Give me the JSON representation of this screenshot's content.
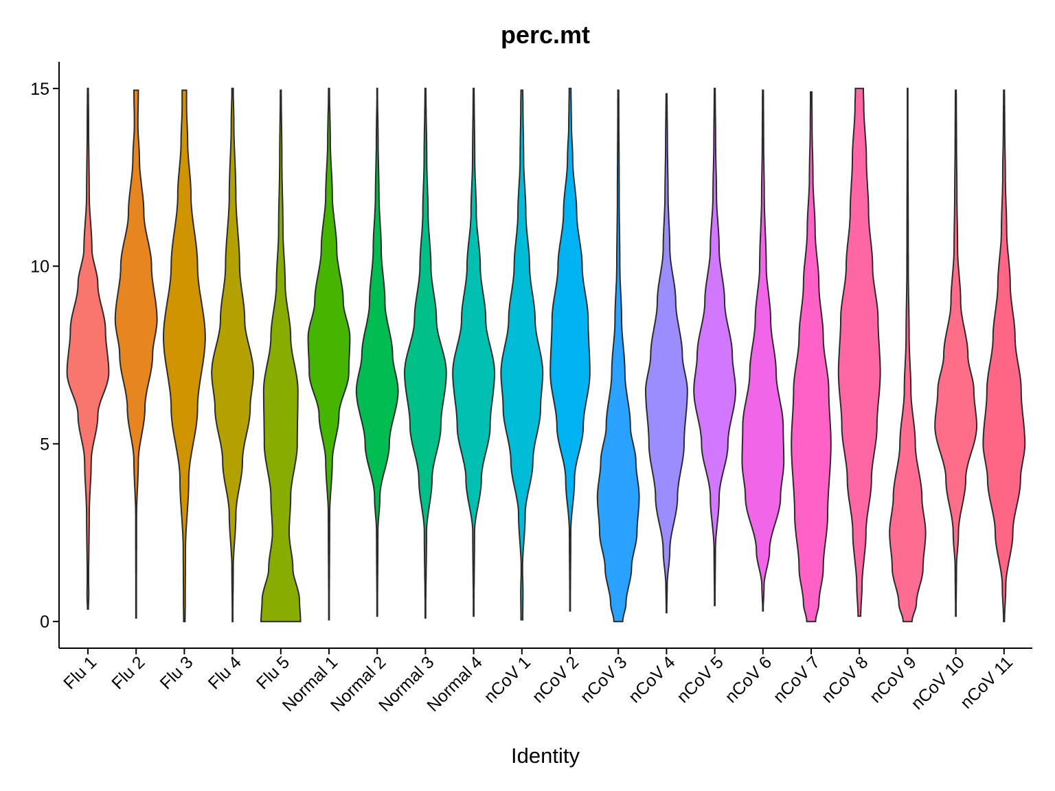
{
  "chart_data": {
    "type": "violin",
    "title": "perc.mt",
    "xlabel": "Identity",
    "ylabel": "",
    "ylim": [
      -0.75,
      15.75
    ],
    "yticks": [
      0,
      5,
      10,
      15
    ],
    "ytick_labels": [
      "0",
      "5",
      "10",
      "15"
    ],
    "legend": "none",
    "grid": false,
    "categories": [
      "Flu 1",
      "Flu 2",
      "Flu 3",
      "Flu 4",
      "Flu 5",
      "Normal 1",
      "Normal 2",
      "Normal 3",
      "Normal 4",
      "nCoV 1",
      "nCoV 2",
      "nCoV 3",
      "nCoV 4",
      "nCoV 5",
      "nCoV 6",
      "nCoV 7",
      "nCoV 8",
      "nCoV 9",
      "nCoV 10",
      "nCoV 11"
    ],
    "colors": [
      "#F8766D",
      "#E7851E",
      "#D09400",
      "#B2A100",
      "#89AC00",
      "#45B500",
      "#00BC51",
      "#00C087",
      "#00C0B2",
      "#00BCD6",
      "#00B3F2",
      "#29A3FF",
      "#9C8DFF",
      "#D277FF",
      "#F166E8",
      "#FF61C7",
      "#FF67A4",
      "#FF6C91",
      "#FF6E88",
      "#FF6585"
    ],
    "series": [
      {
        "name": "Flu 1",
        "min": 0.35,
        "max": 15.0,
        "profile": [
          [
            0.35,
            0.02
          ],
          [
            0.8,
            0.04
          ],
          [
            1.2,
            0.03
          ],
          [
            3,
            0.06
          ],
          [
            4.5,
            0.15
          ],
          [
            5.8,
            0.45
          ],
          [
            7,
            0.95
          ],
          [
            8.2,
            0.8
          ],
          [
            9.5,
            0.45
          ],
          [
            10.5,
            0.18
          ],
          [
            12,
            0.06
          ],
          [
            14,
            0.03
          ],
          [
            15,
            0.02
          ]
        ]
      },
      {
        "name": "Flu 2",
        "min": 0.1,
        "max": 14.95,
        "profile": [
          [
            0.1,
            0.01
          ],
          [
            3,
            0.02
          ],
          [
            4.5,
            0.1
          ],
          [
            6,
            0.4
          ],
          [
            7.5,
            0.75
          ],
          [
            8.5,
            0.95
          ],
          [
            10,
            0.7
          ],
          [
            11.5,
            0.35
          ],
          [
            13,
            0.15
          ],
          [
            14,
            0.08
          ],
          [
            14.95,
            0.1
          ]
        ]
      },
      {
        "name": "Flu 3",
        "min": 0.0,
        "max": 14.95,
        "profile": [
          [
            0,
            0.03
          ],
          [
            0.5,
            0.04
          ],
          [
            2,
            0.05
          ],
          [
            4,
            0.2
          ],
          [
            6,
            0.6
          ],
          [
            8,
            0.95
          ],
          [
            10,
            0.6
          ],
          [
            12,
            0.3
          ],
          [
            13.5,
            0.15
          ],
          [
            14.5,
            0.1
          ],
          [
            14.95,
            0.1
          ]
        ]
      },
      {
        "name": "Flu 4",
        "min": 0.0,
        "max": 15.0,
        "profile": [
          [
            0,
            0.01
          ],
          [
            1.5,
            0.03
          ],
          [
            3,
            0.15
          ],
          [
            4.5,
            0.45
          ],
          [
            6,
            0.8
          ],
          [
            7,
            0.95
          ],
          [
            8.5,
            0.55
          ],
          [
            10,
            0.32
          ],
          [
            12,
            0.15
          ],
          [
            14,
            0.06
          ],
          [
            15,
            0.03
          ]
        ]
      },
      {
        "name": "Flu 5",
        "min": 0.0,
        "max": 14.95,
        "profile": [
          [
            0,
            0.9
          ],
          [
            0.6,
            0.85
          ],
          [
            1.5,
            0.55
          ],
          [
            2.5,
            0.38
          ],
          [
            3.5,
            0.45
          ],
          [
            5,
            0.75
          ],
          [
            6.5,
            0.78
          ],
          [
            8,
            0.45
          ],
          [
            9.5,
            0.2
          ],
          [
            11,
            0.1
          ],
          [
            13,
            0.05
          ],
          [
            14.95,
            0.02
          ]
        ]
      },
      {
        "name": "Normal 1",
        "min": 0.05,
        "max": 15.0,
        "profile": [
          [
            0.05,
            0.01
          ],
          [
            3,
            0.03
          ],
          [
            4.5,
            0.15
          ],
          [
            5.8,
            0.45
          ],
          [
            7,
            0.9
          ],
          [
            8,
            0.95
          ],
          [
            9,
            0.65
          ],
          [
            10.5,
            0.35
          ],
          [
            12,
            0.15
          ],
          [
            13.5,
            0.06
          ],
          [
            15,
            0.02
          ]
        ]
      },
      {
        "name": "Normal 2",
        "min": 0.15,
        "max": 15.0,
        "profile": [
          [
            0.15,
            0.01
          ],
          [
            2.5,
            0.03
          ],
          [
            3.5,
            0.12
          ],
          [
            5,
            0.55
          ],
          [
            6.5,
            0.95
          ],
          [
            7.5,
            0.7
          ],
          [
            9,
            0.35
          ],
          [
            10.5,
            0.18
          ],
          [
            12,
            0.08
          ],
          [
            13.5,
            0.04
          ],
          [
            15,
            0.01
          ]
        ]
      },
      {
        "name": "Normal 3",
        "min": 0.1,
        "max": 15.0,
        "profile": [
          [
            0.1,
            0.01
          ],
          [
            2.5,
            0.05
          ],
          [
            4,
            0.3
          ],
          [
            5.5,
            0.7
          ],
          [
            7,
            0.95
          ],
          [
            8.5,
            0.5
          ],
          [
            10,
            0.25
          ],
          [
            11.5,
            0.12
          ],
          [
            13,
            0.06
          ],
          [
            15,
            0.02
          ]
        ]
      },
      {
        "name": "Normal 4",
        "min": 0.15,
        "max": 15.0,
        "profile": [
          [
            0.15,
            0.01
          ],
          [
            2.5,
            0.04
          ],
          [
            4,
            0.35
          ],
          [
            5.5,
            0.75
          ],
          [
            7,
            0.95
          ],
          [
            8.5,
            0.55
          ],
          [
            10,
            0.3
          ],
          [
            11.5,
            0.12
          ],
          [
            13,
            0.05
          ],
          [
            15,
            0.02
          ]
        ]
      },
      {
        "name": "nCoV 1",
        "min": 0.05,
        "max": 14.95,
        "profile": [
          [
            0.05,
            0.04
          ],
          [
            0.8,
            0.05
          ],
          [
            1.5,
            0.03
          ],
          [
            3,
            0.15
          ],
          [
            4.5,
            0.5
          ],
          [
            6,
            0.85
          ],
          [
            7,
            0.95
          ],
          [
            8.5,
            0.6
          ],
          [
            10,
            0.35
          ],
          [
            11.5,
            0.18
          ],
          [
            13,
            0.08
          ],
          [
            14.5,
            0.05
          ],
          [
            14.95,
            0.04
          ]
        ]
      },
      {
        "name": "nCoV 2",
        "min": 0.3,
        "max": 15.0,
        "profile": [
          [
            0.3,
            0.01
          ],
          [
            2.5,
            0.03
          ],
          [
            4,
            0.2
          ],
          [
            5.5,
            0.6
          ],
          [
            7,
            0.9
          ],
          [
            8.5,
            0.82
          ],
          [
            10,
            0.55
          ],
          [
            11.5,
            0.3
          ],
          [
            13,
            0.12
          ],
          [
            14,
            0.06
          ],
          [
            15,
            0.04
          ]
        ]
      },
      {
        "name": "nCoV 3",
        "min": 0.0,
        "max": 14.95,
        "profile": [
          [
            0,
            0.2
          ],
          [
            0.5,
            0.35
          ],
          [
            1.5,
            0.6
          ],
          [
            2.5,
            0.85
          ],
          [
            3.5,
            0.95
          ],
          [
            4.5,
            0.8
          ],
          [
            5.5,
            0.55
          ],
          [
            7,
            0.3
          ],
          [
            8.5,
            0.15
          ],
          [
            10,
            0.07
          ],
          [
            12,
            0.04
          ],
          [
            14.95,
            0.02
          ]
        ]
      },
      {
        "name": "nCoV 4",
        "min": 0.25,
        "max": 14.85,
        "profile": [
          [
            0.25,
            0.01
          ],
          [
            1,
            0.03
          ],
          [
            2,
            0.15
          ],
          [
            3.5,
            0.5
          ],
          [
            5,
            0.8
          ],
          [
            6.5,
            0.95
          ],
          [
            7.5,
            0.72
          ],
          [
            9,
            0.42
          ],
          [
            10.5,
            0.15
          ],
          [
            12,
            0.07
          ],
          [
            13.5,
            0.04
          ],
          [
            14.85,
            0.02
          ]
        ]
      },
      {
        "name": "nCoV 5",
        "min": 0.45,
        "max": 15.0,
        "profile": [
          [
            0.45,
            0.01
          ],
          [
            2,
            0.03
          ],
          [
            3.5,
            0.2
          ],
          [
            5,
            0.6
          ],
          [
            6.5,
            0.95
          ],
          [
            7.5,
            0.8
          ],
          [
            9,
            0.45
          ],
          [
            10.5,
            0.2
          ],
          [
            12,
            0.08
          ],
          [
            13.5,
            0.04
          ],
          [
            15,
            0.02
          ]
        ]
      },
      {
        "name": "nCoV 6",
        "min": 0.3,
        "max": 14.95,
        "profile": [
          [
            0.3,
            0.01
          ],
          [
            1,
            0.05
          ],
          [
            2,
            0.3
          ],
          [
            3.5,
            0.8
          ],
          [
            4.5,
            0.95
          ],
          [
            5.5,
            0.92
          ],
          [
            7,
            0.6
          ],
          [
            8.5,
            0.35
          ],
          [
            10,
            0.15
          ],
          [
            12,
            0.06
          ],
          [
            13.5,
            0.03
          ],
          [
            14.95,
            0.02
          ]
        ]
      },
      {
        "name": "nCoV 7",
        "min": 0.0,
        "max": 14.9,
        "profile": [
          [
            0,
            0.2
          ],
          [
            0.5,
            0.35
          ],
          [
            1.5,
            0.55
          ],
          [
            3,
            0.75
          ],
          [
            5,
            0.9
          ],
          [
            6.5,
            0.8
          ],
          [
            8,
            0.55
          ],
          [
            9.5,
            0.35
          ],
          [
            11,
            0.18
          ],
          [
            12.5,
            0.08
          ],
          [
            14,
            0.04
          ],
          [
            14.9,
            0.03
          ]
        ]
      },
      {
        "name": "nCoV 8",
        "min": 0.15,
        "max": 15.0,
        "profile": [
          [
            0.15,
            0.06
          ],
          [
            1,
            0.12
          ],
          [
            2.5,
            0.3
          ],
          [
            4,
            0.55
          ],
          [
            5.5,
            0.8
          ],
          [
            7,
            0.95
          ],
          [
            8.5,
            0.85
          ],
          [
            10,
            0.6
          ],
          [
            11.5,
            0.42
          ],
          [
            13,
            0.32
          ],
          [
            14.5,
            0.2
          ],
          [
            15,
            0.18
          ]
        ]
      },
      {
        "name": "nCoV 9",
        "min": 0.0,
        "max": 15.0,
        "profile": [
          [
            0,
            0.2
          ],
          [
            0.5,
            0.4
          ],
          [
            1.5,
            0.7
          ],
          [
            2.5,
            0.82
          ],
          [
            3.5,
            0.65
          ],
          [
            5,
            0.35
          ],
          [
            6.5,
            0.15
          ],
          [
            8,
            0.07
          ],
          [
            10,
            0.03
          ],
          [
            15,
            0.01
          ]
        ]
      },
      {
        "name": "nCoV 10",
        "min": 0.15,
        "max": 14.95,
        "profile": [
          [
            0.15,
            0.01
          ],
          [
            1.5,
            0.03
          ],
          [
            2.5,
            0.12
          ],
          [
            4,
            0.45
          ],
          [
            5.5,
            0.95
          ],
          [
            6.5,
            0.82
          ],
          [
            7.5,
            0.55
          ],
          [
            9,
            0.22
          ],
          [
            10.5,
            0.08
          ],
          [
            12,
            0.05
          ],
          [
            13.5,
            0.03
          ],
          [
            14.95,
            0.02
          ]
        ]
      },
      {
        "name": "nCoV 11",
        "min": 0.0,
        "max": 14.95,
        "profile": [
          [
            0,
            0.02
          ],
          [
            1,
            0.08
          ],
          [
            2.5,
            0.4
          ],
          [
            4,
            0.75
          ],
          [
            5,
            0.95
          ],
          [
            6.5,
            0.78
          ],
          [
            8,
            0.5
          ],
          [
            9.5,
            0.28
          ],
          [
            11,
            0.12
          ],
          [
            12.5,
            0.06
          ],
          [
            14,
            0.03
          ],
          [
            14.95,
            0.02
          ]
        ]
      }
    ]
  }
}
